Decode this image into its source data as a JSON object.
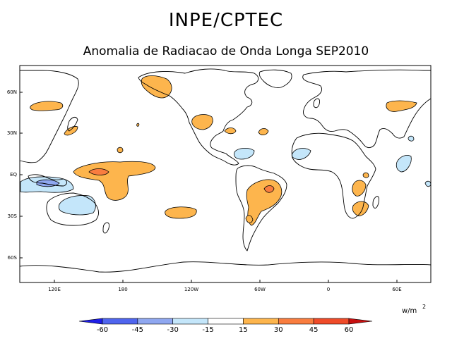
{
  "title": "INPE/CPTEC",
  "subtitle": "Anomalia de Radiacao de Onda Longa SEP2010",
  "axes": {
    "lat_labels": [
      "60N",
      "30N",
      "EQ",
      "30S",
      "60S"
    ],
    "lon_labels": [
      "120E",
      "180",
      "120W",
      "60W",
      "0",
      "60E"
    ]
  },
  "colorbar": {
    "unit": "w/m",
    "unit_exponent": "2",
    "tick_labels": [
      "-60",
      "-45",
      "-30",
      "-15",
      "15",
      "30",
      "45",
      "60"
    ],
    "colors": [
      "#1e1ee8",
      "#4f65ee",
      "#8fa7f0",
      "#c4e6fa",
      "#ffffff",
      "#fdb54d",
      "#f97d3f",
      "#ef4b29",
      "#c81010"
    ]
  },
  "anomaly_colors": {
    "positive_15_30": "#fdb54d",
    "positive_30_45": "#f97d3f",
    "negative_15_30": "#c4e6fa",
    "negative_30_45": "#8fa7f0"
  }
}
